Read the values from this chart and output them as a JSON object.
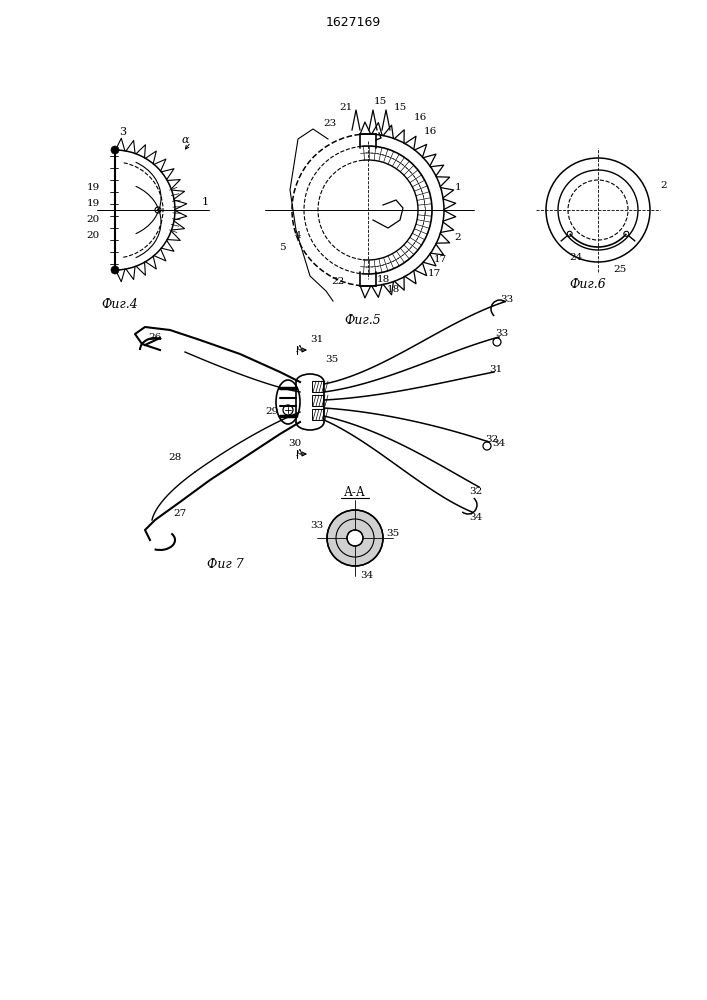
{
  "title": "1627169",
  "bg_color": "#ffffff",
  "line_color": "#000000",
  "fig4_caption": "Фиг.4",
  "fig5_caption": "Фиг.5",
  "fig6_caption": "Фиг.6",
  "fig7_caption": "Фиг 7",
  "fig_aa_caption": "А-А"
}
